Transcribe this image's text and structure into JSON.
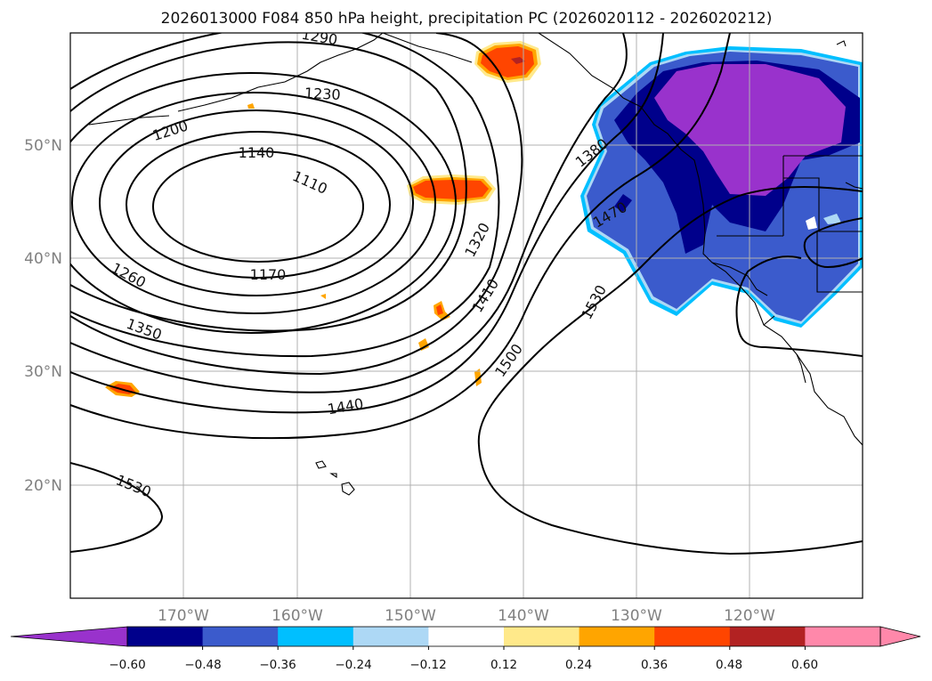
{
  "title": "2026013000 F084 850 hPa height, precipitation PC (2026020112 - 2026020212)",
  "map": {
    "lon_ticks": [
      "170°W",
      "160°W",
      "150°W",
      "140°W",
      "130°W",
      "120°W"
    ],
    "lat_ticks": [
      "50°N",
      "40°N",
      "30°N",
      "20°N"
    ],
    "contour_labels": [
      "1290",
      "1230",
      "1200",
      "1140",
      "1110",
      "1380",
      "1470",
      "1320",
      "1410",
      "1260",
      "1170",
      "1350",
      "1500",
      "1530",
      "1440",
      "1530"
    ]
  },
  "colorbar": {
    "ticks": [
      "−0.60",
      "−0.48",
      "−0.36",
      "−0.24",
      "−0.12",
      "0.12",
      "0.24",
      "0.36",
      "0.48",
      "0.60"
    ],
    "colors": [
      "#9932cc",
      "#00008b",
      "#3b5bcc",
      "#00bfff",
      "#add8f5",
      "#ffffff",
      "#ffe98a",
      "#ffa500",
      "#ff4500",
      "#b22222",
      "#ff88aa",
      "#ff88aa"
    ]
  }
}
